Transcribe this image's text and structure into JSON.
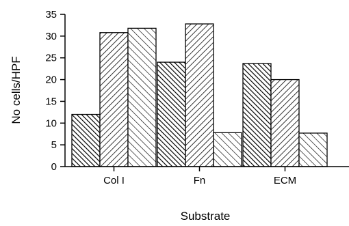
{
  "chart_data": {
    "type": "bar",
    "title": "",
    "xlabel": "Substrate",
    "ylabel": "No cells/HPF",
    "ylim": [
      0,
      35
    ],
    "yticks": [
      0,
      5,
      10,
      15,
      20,
      25,
      30,
      35
    ],
    "categories": [
      "Col I",
      "Fn",
      "ECM"
    ],
    "grid": false,
    "legend": "none",
    "series": [
      {
        "pattern": "dense-backslash-hatch",
        "values": [
          12,
          24,
          23.7
        ]
      },
      {
        "pattern": "forward-slash-hatch",
        "values": [
          30.8,
          32.8,
          20
        ]
      },
      {
        "pattern": "sparse-backslash-hatch",
        "values": [
          31.8,
          7.8,
          7.7
        ]
      }
    ]
  }
}
